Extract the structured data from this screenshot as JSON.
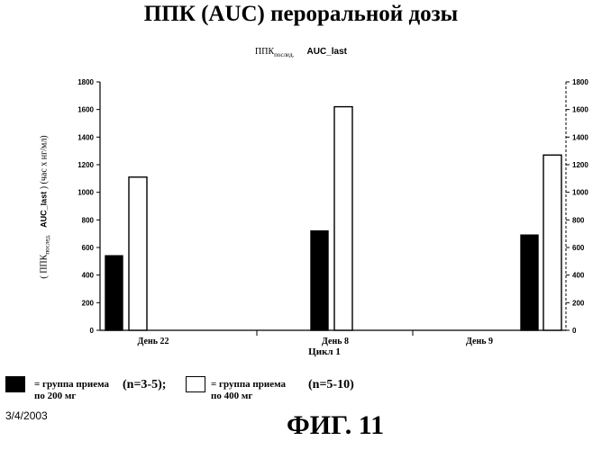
{
  "chart_data": {
    "type": "bar",
    "title": "ППК (AUC) пероральной дозы",
    "subtitle_ru": "ППК",
    "subtitle_ru_sub": "послед.",
    "subtitle_en": "AUC_last",
    "ylabel_ru": "ППК",
    "ylabel_ru_sub": "послед.",
    "ylabel_en": "AUC_last",
    "ylabel_units": ") (час х нг/мл)",
    "xlabel": "Цикл 1",
    "categories": [
      "День 22",
      "День 8",
      "День 9"
    ],
    "ylim": [
      0,
      1800
    ],
    "yticks": [
      0,
      200,
      400,
      600,
      800,
      1000,
      1200,
      1400,
      1600,
      1800
    ],
    "grid": false,
    "series": [
      {
        "name": "= группа приема по 200 мг",
        "values": [
          540,
          720,
          690
        ]
      },
      {
        "name": "= группа приема по 400 мг",
        "values": [
          1110,
          1620,
          1270
        ]
      }
    ]
  },
  "legend": {
    "items": [
      {
        "label_line1": "= группа приема",
        "label_line2": "по 200 мг",
        "n": "(n=3-5);",
        "color": "#000000"
      },
      {
        "label_line1": "= группа приема",
        "label_line2": "по 400 мг",
        "n": "(n=5-10)",
        "color": "#ffffff"
      }
    ]
  },
  "date": "3/4/2003",
  "figure_label": "ФИГ. 11"
}
